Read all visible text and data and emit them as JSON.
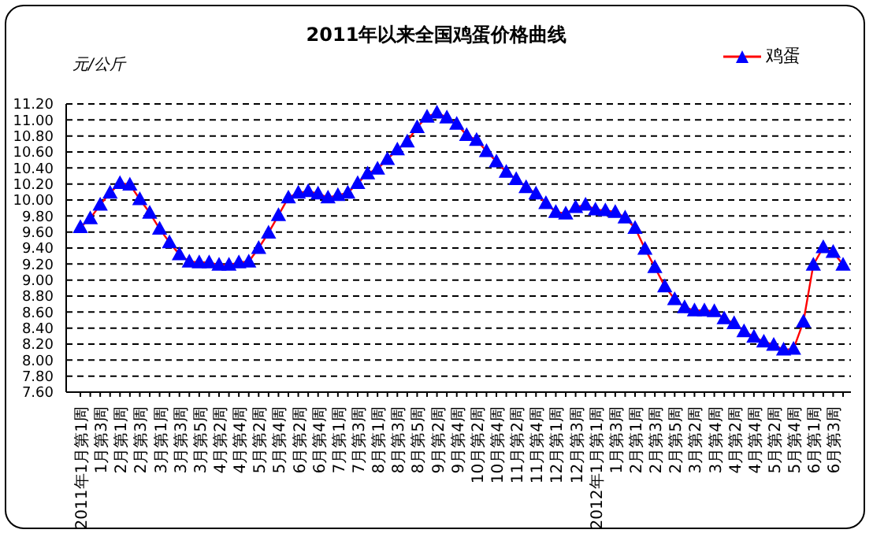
{
  "chart_data": {
    "type": "line",
    "title": "2011年以来全国鸡蛋价格曲线",
    "ylabel": "元/公斤",
    "categories": [
      "2011年1月第1周",
      null,
      "1月第3周",
      null,
      "2月第1周",
      null,
      "2月第3周",
      null,
      "3月第1周",
      null,
      "3月第3周",
      null,
      "3月第5周",
      null,
      "4月第2周",
      null,
      "4月第4周",
      null,
      "5月第2周",
      null,
      "5月第4周",
      null,
      "6月第2周",
      null,
      "6月第4周",
      null,
      "7月第1周",
      null,
      "7月第3周",
      null,
      "8月第1周",
      null,
      "8月第3周",
      null,
      "8月第5周",
      null,
      "9月第2周",
      null,
      "9月第4周",
      null,
      "10月第2周",
      null,
      "10月第4周",
      null,
      "11月第2周",
      null,
      "11月第4周",
      null,
      "12月第1周",
      null,
      "12月第3周",
      null,
      "2012年1月第1周",
      null,
      "1月第3周",
      null,
      "2月第1周",
      null,
      "2月第3周",
      null,
      "2月第5周",
      null,
      "3月第2周",
      null,
      "3月第4周",
      null,
      "4月第2周",
      null,
      "4月第4周",
      null,
      "5月第2周",
      null,
      "5月第4周",
      null,
      "6月第1周",
      null,
      "6月第3周",
      null
    ],
    "series": [
      {
        "name": "鸡蛋",
        "color": "#ff0000",
        "values": [
          9.66,
          9.77,
          9.94,
          10.09,
          10.21,
          10.19,
          10.01,
          9.84,
          9.64,
          9.47,
          9.32,
          9.23,
          9.22,
          9.22,
          9.19,
          9.19,
          9.22,
          9.23,
          9.4,
          9.59,
          9.81,
          10.03,
          10.09,
          10.11,
          10.08,
          10.03,
          10.06,
          10.09,
          10.21,
          10.33,
          10.39,
          10.51,
          10.63,
          10.73,
          10.91,
          11.04,
          11.09,
          11.03,
          10.95,
          10.81,
          10.75,
          10.61,
          10.48,
          10.35,
          10.26,
          10.16,
          10.08,
          9.96,
          9.85,
          9.83,
          9.91,
          9.94,
          9.88,
          9.87,
          9.85,
          9.78,
          9.65,
          9.39,
          9.16,
          8.92,
          8.76,
          8.66,
          8.62,
          8.62,
          8.61,
          8.52,
          8.46,
          8.36,
          8.29,
          8.23,
          8.19,
          8.13,
          8.14,
          8.48,
          9.19,
          9.41,
          9.35,
          9.19
        ]
      }
    ],
    "ylim": [
      7.6,
      11.2
    ],
    "yticks": [
      {
        "value": 7.6,
        "label": "7.60"
      },
      {
        "value": 7.8,
        "label": "7.80"
      },
      {
        "value": 8.0,
        "label": "8.00"
      },
      {
        "value": 8.2,
        "label": "8.20"
      },
      {
        "value": 8.4,
        "label": "8.40"
      },
      {
        "value": 8.6,
        "label": "8.60"
      },
      {
        "value": 8.8,
        "label": "8.80"
      },
      {
        "value": 9.0,
        "label": "9.00"
      },
      {
        "value": 9.2,
        "label": "9.20"
      },
      {
        "value": 9.4,
        "label": "9.40"
      },
      {
        "value": 9.6,
        "label": "9.60"
      },
      {
        "value": 9.8,
        "label": "9.80"
      },
      {
        "value": 10.0,
        "label": "10.00"
      },
      {
        "value": 10.2,
        "label": "10.20"
      },
      {
        "value": 10.4,
        "label": "10.40"
      },
      {
        "value": 10.6,
        "label": "10.60"
      },
      {
        "value": 10.8,
        "label": "10.80"
      },
      {
        "value": 11.0,
        "label": "11.00"
      },
      {
        "value": 11.2,
        "label": "11.20"
      }
    ],
    "grid": "y",
    "legend": "top right",
    "marker": "triangle",
    "line_style": "solid"
  }
}
